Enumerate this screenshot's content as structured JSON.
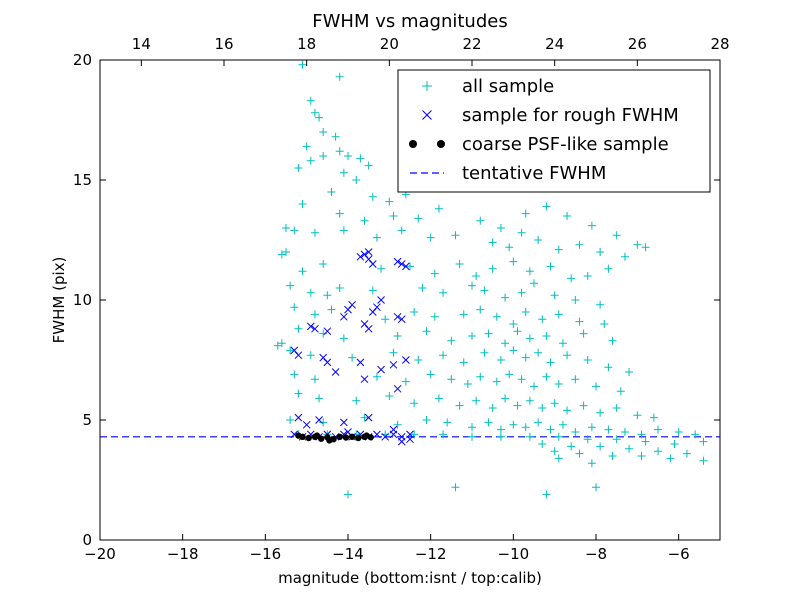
{
  "chart_data": {
    "type": "scatter",
    "title": "FWHM vs magnitudes",
    "xlabel": "magnitude (bottom:isnt / top:calib)",
    "ylabel": "FWHM (pix)",
    "xlim": [
      -20,
      -5
    ],
    "ylim": [
      0,
      20
    ],
    "top_xlim": [
      13,
      28
    ],
    "x_ticks": [
      -20,
      -18,
      -16,
      -14,
      -12,
      -10,
      -8,
      -6
    ],
    "x_tick_labels": [
      "−20",
      "−18",
      "−16",
      "−14",
      "−12",
      "−10",
      "−8",
      "−6"
    ],
    "y_ticks": [
      0,
      5,
      10,
      15,
      20
    ],
    "y_tick_labels": [
      "0",
      "5",
      "10",
      "15",
      "20"
    ],
    "top_ticks": [
      14,
      16,
      18,
      20,
      22,
      24,
      26,
      28
    ],
    "top_tick_labels": [
      "14",
      "16",
      "18",
      "20",
      "22",
      "24",
      "26",
      "28"
    ],
    "tentative_fwhm": 4.3,
    "legend_position": "upper-right",
    "legend": [
      {
        "label": "all sample",
        "marker": "plus",
        "color": "#00bfbf"
      },
      {
        "label": "sample for rough FWHM",
        "marker": "x",
        "color": "#0000ff"
      },
      {
        "label": "coarse PSF-like sample",
        "marker": "dot",
        "color": "#000000"
      },
      {
        "label": "tentative FWHM",
        "marker": "dashed-line",
        "color": "#0000ff"
      }
    ],
    "series": [
      {
        "name": "all sample",
        "marker": "plus",
        "color": "#00bfbf",
        "points": [
          [
            -15.1,
            19.8
          ],
          [
            -14.2,
            19.3
          ],
          [
            -14.9,
            18.3
          ],
          [
            -14.7,
            17.6
          ],
          [
            -14.8,
            17.8
          ],
          [
            -14.6,
            17.0
          ],
          [
            -14.3,
            16.8
          ],
          [
            -15.0,
            16.4
          ],
          [
            -14.6,
            16.0
          ],
          [
            -14.9,
            15.8
          ],
          [
            -14.2,
            16.2
          ],
          [
            -14.0,
            16.0
          ],
          [
            -13.7,
            15.9
          ],
          [
            -15.2,
            15.5
          ],
          [
            -14.1,
            15.3
          ],
          [
            -13.5,
            15.6
          ],
          [
            -13.8,
            15.0
          ],
          [
            -14.4,
            14.5
          ],
          [
            -15.1,
            14.0
          ],
          [
            -13.4,
            14.3
          ],
          [
            -13.0,
            14.1
          ],
          [
            -12.6,
            14.4
          ],
          [
            -14.2,
            13.6
          ],
          [
            -13.6,
            13.3
          ],
          [
            -12.9,
            13.5
          ],
          [
            -12.3,
            13.4
          ],
          [
            -11.8,
            13.8
          ],
          [
            -15.5,
            13.0
          ],
          [
            -14.8,
            12.8
          ],
          [
            -14.1,
            12.9
          ],
          [
            -13.3,
            12.6
          ],
          [
            -12.7,
            12.9
          ],
          [
            -12.0,
            12.6
          ],
          [
            -11.4,
            12.7
          ],
          [
            -10.8,
            13.3
          ],
          [
            -10.3,
            13.0
          ],
          [
            -9.7,
            13.6
          ],
          [
            -9.2,
            13.9
          ],
          [
            -8.7,
            13.5
          ],
          [
            -8.1,
            13.1
          ],
          [
            -7.5,
            12.7
          ],
          [
            -7.0,
            12.3
          ],
          [
            -6.8,
            12.2
          ],
          [
            -15.6,
            11.9
          ],
          [
            -15.1,
            11.2
          ],
          [
            -14.6,
            11.5
          ],
          [
            -13.2,
            11.3
          ],
          [
            -12.5,
            11.4
          ],
          [
            -11.9,
            11.1
          ],
          [
            -11.3,
            11.5
          ],
          [
            -10.9,
            11.0
          ],
          [
            -10.5,
            11.3
          ],
          [
            -10.0,
            11.6
          ],
          [
            -9.6,
            11.2
          ],
          [
            -9.1,
            11.4
          ],
          [
            -8.6,
            10.9
          ],
          [
            -8.2,
            11.0
          ],
          [
            -7.7,
            11.3
          ],
          [
            -15.4,
            10.6
          ],
          [
            -14.9,
            10.3
          ],
          [
            -14.5,
            10.2
          ],
          [
            -14.2,
            10.5
          ],
          [
            -13.4,
            10.4
          ],
          [
            -12.2,
            10.5
          ],
          [
            -11.7,
            10.3
          ],
          [
            -11.0,
            10.6
          ],
          [
            -10.7,
            10.4
          ],
          [
            -10.2,
            10.1
          ],
          [
            -9.8,
            10.3
          ],
          [
            -9.5,
            10.7
          ],
          [
            -9.0,
            10.2
          ],
          [
            -8.5,
            10.0
          ],
          [
            -7.9,
            9.8
          ],
          [
            -15.3,
            9.7
          ],
          [
            -14.8,
            9.4
          ],
          [
            -14.4,
            9.6
          ],
          [
            -13.1,
            9.2
          ],
          [
            -12.4,
            9.5
          ],
          [
            -11.9,
            9.3
          ],
          [
            -11.2,
            9.4
          ],
          [
            -10.8,
            9.6
          ],
          [
            -10.4,
            9.3
          ],
          [
            -10.0,
            9.0
          ],
          [
            -9.7,
            9.5
          ],
          [
            -9.3,
            9.2
          ],
          [
            -8.9,
            9.4
          ],
          [
            -8.4,
            9.1
          ],
          [
            -7.8,
            9.0
          ],
          [
            -15.2,
            8.8
          ],
          [
            -14.6,
            8.6
          ],
          [
            -14.1,
            8.4
          ],
          [
            -12.8,
            8.5
          ],
          [
            -12.1,
            8.7
          ],
          [
            -11.5,
            8.3
          ],
          [
            -11.0,
            8.5
          ],
          [
            -10.6,
            8.6
          ],
          [
            -10.2,
            8.2
          ],
          [
            -9.9,
            8.7
          ],
          [
            -9.6,
            8.4
          ],
          [
            -9.2,
            8.5
          ],
          [
            -8.8,
            8.2
          ],
          [
            -8.3,
            8.6
          ],
          [
            -7.6,
            8.3
          ],
          [
            -15.4,
            7.9
          ],
          [
            -14.9,
            7.7
          ],
          [
            -13.9,
            7.6
          ],
          [
            -12.9,
            7.8
          ],
          [
            -12.3,
            7.5
          ],
          [
            -11.7,
            7.7
          ],
          [
            -11.2,
            7.4
          ],
          [
            -10.7,
            7.8
          ],
          [
            -10.3,
            7.5
          ],
          [
            -10.0,
            7.9
          ],
          [
            -9.7,
            7.6
          ],
          [
            -9.4,
            7.8
          ],
          [
            -9.1,
            7.4
          ],
          [
            -8.7,
            7.7
          ],
          [
            -8.2,
            7.5
          ],
          [
            -7.7,
            7.2
          ],
          [
            -7.2,
            7.0
          ],
          [
            -15.3,
            6.9
          ],
          [
            -14.8,
            6.7
          ],
          [
            -13.3,
            6.8
          ],
          [
            -12.6,
            6.6
          ],
          [
            -12.0,
            6.9
          ],
          [
            -11.5,
            6.7
          ],
          [
            -11.1,
            6.5
          ],
          [
            -10.8,
            6.8
          ],
          [
            -10.4,
            6.6
          ],
          [
            -10.1,
            6.9
          ],
          [
            -9.8,
            6.7
          ],
          [
            -9.5,
            6.4
          ],
          [
            -9.2,
            6.8
          ],
          [
            -8.9,
            6.5
          ],
          [
            -8.5,
            6.7
          ],
          [
            -8.0,
            6.4
          ],
          [
            -7.4,
            6.2
          ],
          [
            -15.2,
            6.1
          ],
          [
            -14.7,
            5.9
          ],
          [
            -13.8,
            5.8
          ],
          [
            -13.0,
            6.0
          ],
          [
            -12.4,
            5.7
          ],
          [
            -11.8,
            5.9
          ],
          [
            -11.3,
            5.6
          ],
          [
            -10.9,
            5.8
          ],
          [
            -10.5,
            5.5
          ],
          [
            -10.2,
            5.9
          ],
          [
            -9.9,
            5.6
          ],
          [
            -9.6,
            5.8
          ],
          [
            -9.3,
            5.5
          ],
          [
            -9.0,
            5.7
          ],
          [
            -8.7,
            5.4
          ],
          [
            -8.3,
            5.6
          ],
          [
            -7.9,
            5.3
          ],
          [
            -7.5,
            5.5
          ],
          [
            -7.0,
            5.2
          ],
          [
            -6.6,
            5.1
          ],
          [
            -15.4,
            5.0
          ],
          [
            -14.6,
            4.9
          ],
          [
            -13.6,
            5.1
          ],
          [
            -12.8,
            4.8
          ],
          [
            -12.1,
            5.0
          ],
          [
            -11.6,
            4.9
          ],
          [
            -11.0,
            4.7
          ],
          [
            -10.6,
            4.9
          ],
          [
            -10.3,
            4.6
          ],
          [
            -10.0,
            4.8
          ],
          [
            -9.7,
            4.7
          ],
          [
            -9.4,
            4.9
          ],
          [
            -9.1,
            4.6
          ],
          [
            -8.8,
            4.8
          ],
          [
            -8.5,
            4.5
          ],
          [
            -8.1,
            4.7
          ],
          [
            -7.7,
            4.6
          ],
          [
            -7.3,
            4.5
          ],
          [
            -6.9,
            4.4
          ],
          [
            -6.5,
            4.6
          ],
          [
            -6.0,
            4.5
          ],
          [
            -5.6,
            4.4
          ],
          [
            -15.2,
            4.4
          ],
          [
            -14.5,
            4.4
          ],
          [
            -13.8,
            4.4
          ],
          [
            -13.1,
            4.4
          ],
          [
            -12.4,
            4.4
          ],
          [
            -11.7,
            4.4
          ],
          [
            -11.0,
            4.3
          ],
          [
            -10.3,
            4.3
          ],
          [
            -9.6,
            4.3
          ],
          [
            -8.9,
            4.3
          ],
          [
            -8.2,
            4.2
          ],
          [
            -7.5,
            4.2
          ],
          [
            -6.8,
            4.1
          ],
          [
            -6.1,
            4.0
          ],
          [
            -5.4,
            4.1
          ],
          [
            -9.3,
            4.0
          ],
          [
            -8.6,
            3.9
          ],
          [
            -7.9,
            3.9
          ],
          [
            -7.2,
            3.8
          ],
          [
            -6.5,
            3.7
          ],
          [
            -5.8,
            3.6
          ],
          [
            -9.0,
            3.7
          ],
          [
            -8.4,
            3.6
          ],
          [
            -7.6,
            3.5
          ],
          [
            -6.9,
            3.5
          ],
          [
            -6.2,
            3.4
          ],
          [
            -5.4,
            3.3
          ],
          [
            -8.9,
            3.4
          ],
          [
            -8.1,
            3.2
          ],
          [
            -14.0,
            1.9
          ],
          [
            -11.4,
            2.2
          ],
          [
            -9.2,
            1.9
          ],
          [
            -8.0,
            2.2
          ],
          [
            -15.7,
            8.1
          ],
          [
            -15.6,
            8.2
          ],
          [
            -15.5,
            12.0
          ],
          [
            -15.3,
            12.9
          ],
          [
            -10.5,
            12.4
          ],
          [
            -9.8,
            12.8
          ],
          [
            -9.4,
            12.5
          ],
          [
            -8.9,
            12.1
          ],
          [
            -8.4,
            12.3
          ],
          [
            -7.9,
            12.0
          ],
          [
            -7.3,
            11.8
          ],
          [
            -10.1,
            12.2
          ]
        ]
      },
      {
        "name": "sample for rough FWHM",
        "marker": "x",
        "color": "#0000ff",
        "points": [
          [
            -13.6,
            11.9
          ],
          [
            -13.5,
            11.7
          ],
          [
            -13.4,
            11.5
          ],
          [
            -13.7,
            11.8
          ],
          [
            -13.5,
            12.0
          ],
          [
            -12.8,
            11.6
          ],
          [
            -12.6,
            11.4
          ],
          [
            -12.7,
            11.5
          ],
          [
            -13.2,
            10.0
          ],
          [
            -13.3,
            9.7
          ],
          [
            -13.4,
            9.5
          ],
          [
            -13.9,
            9.8
          ],
          [
            -14.0,
            9.6
          ],
          [
            -14.1,
            9.3
          ],
          [
            -13.6,
            9.0
          ],
          [
            -13.5,
            8.8
          ],
          [
            -14.8,
            8.8
          ],
          [
            -14.9,
            8.9
          ],
          [
            -14.5,
            8.7
          ],
          [
            -12.8,
            9.3
          ],
          [
            -12.7,
            9.2
          ],
          [
            -15.3,
            7.9
          ],
          [
            -15.2,
            7.7
          ],
          [
            -14.6,
            7.6
          ],
          [
            -14.5,
            7.4
          ],
          [
            -13.7,
            7.4
          ],
          [
            -13.2,
            7.1
          ],
          [
            -12.9,
            7.3
          ],
          [
            -12.6,
            7.5
          ],
          [
            -14.3,
            7.0
          ],
          [
            -13.6,
            6.7
          ],
          [
            -12.8,
            6.3
          ],
          [
            -15.2,
            5.1
          ],
          [
            -15.0,
            4.8
          ],
          [
            -14.7,
            5.0
          ],
          [
            -14.1,
            4.9
          ],
          [
            -13.5,
            5.1
          ],
          [
            -12.9,
            4.6
          ],
          [
            -12.5,
            4.2
          ],
          [
            -12.7,
            4.1
          ],
          [
            -15.3,
            4.4
          ],
          [
            -15.1,
            4.3
          ],
          [
            -14.9,
            4.4
          ],
          [
            -14.7,
            4.3
          ],
          [
            -14.5,
            4.4
          ],
          [
            -14.3,
            4.3
          ],
          [
            -14.1,
            4.4
          ],
          [
            -13.9,
            4.3
          ],
          [
            -13.7,
            4.4
          ],
          [
            -13.5,
            4.3
          ],
          [
            -13.3,
            4.4
          ],
          [
            -13.1,
            4.3
          ],
          [
            -12.9,
            4.4
          ],
          [
            -12.7,
            4.3
          ],
          [
            -12.5,
            4.4
          ],
          [
            -14.0,
            4.5
          ]
        ]
      },
      {
        "name": "coarse PSF-like sample",
        "marker": "dot",
        "color": "#000000",
        "points": [
          [
            -15.1,
            4.3
          ],
          [
            -14.95,
            4.25
          ],
          [
            -14.8,
            4.3
          ],
          [
            -14.65,
            4.22
          ],
          [
            -14.5,
            4.28
          ],
          [
            -14.35,
            4.2
          ],
          [
            -14.2,
            4.3
          ],
          [
            -14.05,
            4.27
          ],
          [
            -13.9,
            4.3
          ],
          [
            -13.75,
            4.25
          ],
          [
            -13.6,
            4.3
          ],
          [
            -13.45,
            4.28
          ],
          [
            -15.2,
            4.35
          ],
          [
            -14.45,
            4.15
          ],
          [
            -13.55,
            4.35
          ],
          [
            -14.75,
            4.35
          ]
        ]
      }
    ]
  }
}
